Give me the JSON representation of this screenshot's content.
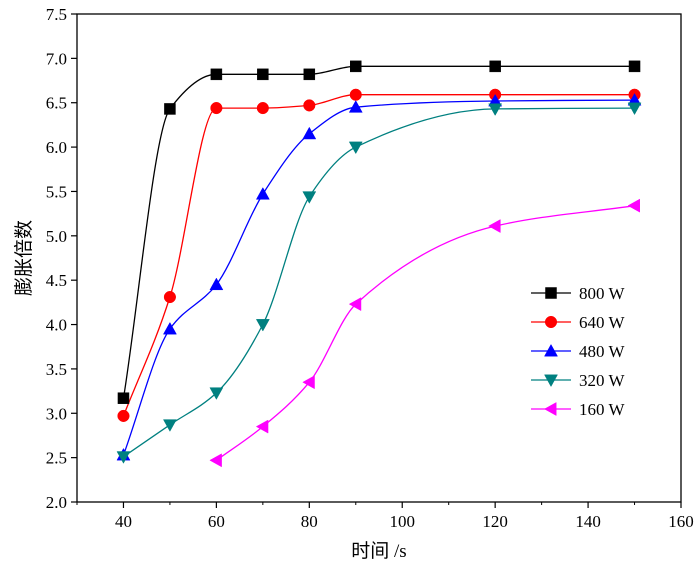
{
  "chart_data": {
    "type": "line",
    "xlabel": "时间 /s",
    "ylabel": "膨胀倍数",
    "xlim": [
      30,
      160
    ],
    "ylim": [
      2.0,
      7.5
    ],
    "xticks": [
      40,
      60,
      80,
      100,
      120,
      140,
      160
    ],
    "yticks": [
      2.0,
      2.5,
      3.0,
      3.5,
      4.0,
      4.5,
      5.0,
      5.5,
      6.0,
      6.5,
      7.0,
      7.5
    ],
    "xtick_labels": [
      "40",
      "60",
      "80",
      "100",
      "120",
      "140",
      "160"
    ],
    "ytick_labels": [
      "2.0",
      "2.5",
      "3.0",
      "3.5",
      "4.0",
      "4.5",
      "5.0",
      "5.5",
      "6.0",
      "6.5",
      "7.0",
      "7.5"
    ],
    "legend_position": "right",
    "grid": false,
    "series": [
      {
        "name": "800 W",
        "color": "#000000",
        "marker": "square",
        "x": [
          40,
          50,
          60,
          70,
          80,
          90,
          120,
          150
        ],
        "y": [
          3.17,
          6.43,
          6.82,
          6.82,
          6.82,
          6.91,
          6.91,
          6.91
        ]
      },
      {
        "name": "640 W",
        "color": "#ff0000",
        "marker": "circle",
        "x": [
          40,
          50,
          60,
          70,
          80,
          90,
          120,
          150
        ],
        "y": [
          2.97,
          4.31,
          6.44,
          6.44,
          6.47,
          6.59,
          6.59,
          6.59
        ]
      },
      {
        "name": "480 W",
        "color": "#0000ff",
        "marker": "triangle-up",
        "x": [
          40,
          50,
          60,
          70,
          80,
          90,
          120,
          150
        ],
        "y": [
          2.53,
          3.95,
          4.45,
          5.47,
          6.15,
          6.45,
          6.52,
          6.53
        ]
      },
      {
        "name": "320 W",
        "color": "#008080",
        "marker": "triangle-down",
        "x": [
          40,
          50,
          60,
          70,
          80,
          90,
          120,
          150
        ],
        "y": [
          2.51,
          2.87,
          3.23,
          4.0,
          5.44,
          6.0,
          6.43,
          6.44
        ]
      },
      {
        "name": "160 W",
        "color": "#ff00ff",
        "marker": "triangle-left",
        "x": [
          60,
          70,
          80,
          90,
          120,
          150
        ],
        "y": [
          2.47,
          2.85,
          3.35,
          4.23,
          5.11,
          5.34
        ]
      }
    ]
  }
}
